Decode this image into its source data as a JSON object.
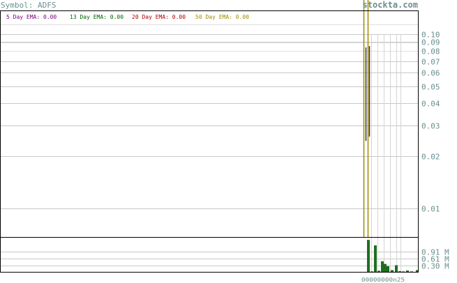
{
  "header": {
    "symbol_label": "Symbol: ADFS",
    "watermark": "stockta.com"
  },
  "legend": [
    {
      "label": "5 Day EMA: 0.00",
      "color": "#800080"
    },
    {
      "label": "13 Day EMA: 0.00",
      "color": "#006400"
    },
    {
      "label": "20 Day EMA: 0.00",
      "color": "#b00000"
    },
    {
      "label": "50 Day EMA: 0.00",
      "color": "#a08c00"
    }
  ],
  "colors": {
    "grid": "#c8c8c8",
    "axis": "#000000",
    "axis_text": "#6a8f8f",
    "volume_bar": "#1f6e1f",
    "ema_line": "#a08c00"
  },
  "chart_data": [
    {
      "type": "line",
      "title": "",
      "scale": "log",
      "ylim": [
        0.0065,
        0.105
      ],
      "y_ticks": [
        "0.10",
        "0.09",
        "0.08",
        "0.07",
        "0.06",
        "0.05",
        "0.04",
        "0.03",
        "0.02",
        "0.01"
      ],
      "y_tick_values": [
        0.1,
        0.09,
        0.08,
        0.07,
        0.06,
        0.05,
        0.04,
        0.03,
        0.02,
        0.01
      ],
      "grid": true
    },
    {
      "type": "bar",
      "title": "",
      "y_ticks": [
        "0.91 M",
        "0.61 M",
        "0.30 M"
      ],
      "y_tick_values": [
        0.91,
        0.61,
        0.3
      ],
      "ylim": [
        0,
        1.55
      ],
      "values": [
        1.45,
        0.02,
        1.2,
        0.05,
        0.48,
        0.36,
        0.26,
        0.08,
        0.3,
        0.03,
        0.02,
        0.06,
        0.02,
        0.08
      ]
    }
  ],
  "x_axis": {
    "tick_text": "00000000n25"
  }
}
